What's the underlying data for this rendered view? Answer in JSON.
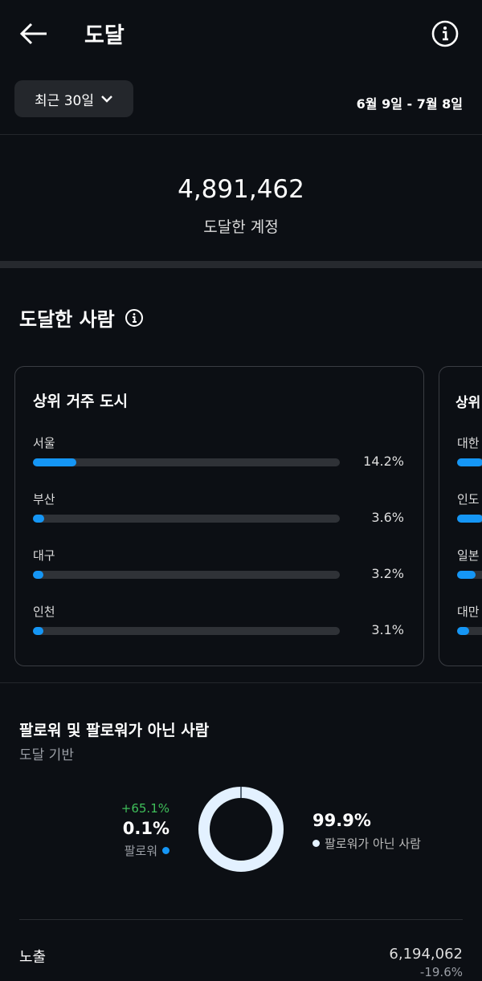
{
  "header": {
    "title": "도달",
    "back_icon": "arrow-left-icon",
    "info_icon": "info-icon"
  },
  "filter": {
    "range_label": "최근 30일",
    "dates": "6월 9일 - 7월 8일"
  },
  "summary": {
    "value": "4,891,462",
    "label": "도달한 계정"
  },
  "reached": {
    "title": "도달한 사람",
    "cities": {
      "title": "상위 거주 도시",
      "items": [
        {
          "label": "서울",
          "value": "14.2%",
          "fill": 14.2
        },
        {
          "label": "부산",
          "value": "3.6%",
          "fill": 3.6
        },
        {
          "label": "대구",
          "value": "3.2%",
          "fill": 3.2
        },
        {
          "label": "인천",
          "value": "3.1%",
          "fill": 3.1
        }
      ]
    },
    "countries": {
      "title": "상위",
      "items": [
        {
          "label": "대한",
          "fill": 40
        },
        {
          "label": "인도",
          "fill": 40
        },
        {
          "label": "일본",
          "fill": 6
        },
        {
          "label": "대만",
          "fill": 4
        }
      ]
    }
  },
  "followers": {
    "title": "팔로워 및 팔로워가 아닌 사람",
    "subtitle": "도달 기반",
    "follower": {
      "change": "+65.1%",
      "value": "0.1%",
      "label": "팔로워",
      "percent": 0.1
    },
    "non_follower": {
      "value": "99.9%",
      "label": "팔로워가 아닌 사람",
      "percent": 99.9
    },
    "colors": {
      "follower": "#1596f5",
      "non_follower": "#e3f1ff",
      "change_positive": "#3fbf5a"
    }
  },
  "impressions": {
    "label": "노출",
    "value": "6,194,062",
    "change": "-19.6%"
  }
}
